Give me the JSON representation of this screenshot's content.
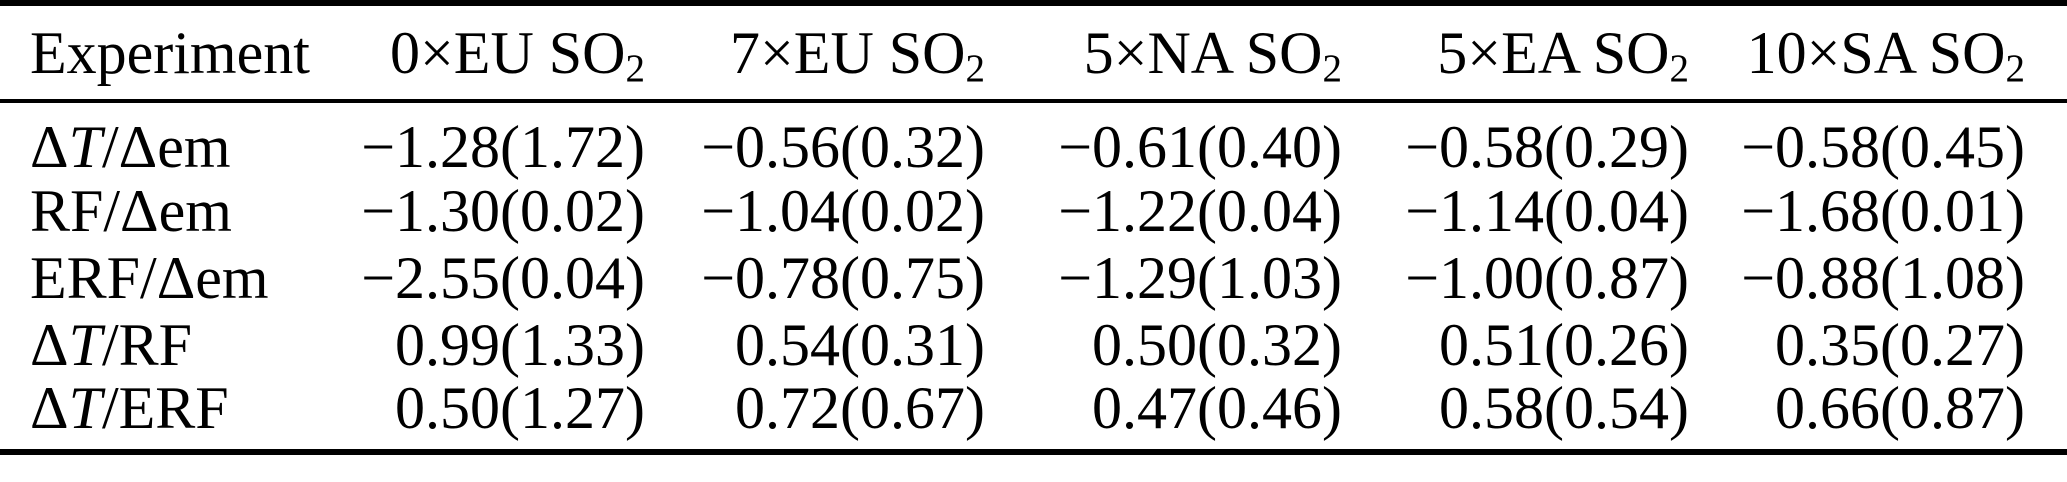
{
  "colors": {
    "text": "#000000",
    "background": "#ffffff",
    "rules": "#000000"
  },
  "table": {
    "columns": [
      {
        "label": "Experiment",
        "sub": ""
      },
      {
        "label": "0×EU SO",
        "sub": "2"
      },
      {
        "label": "7×EU SO",
        "sub": "2"
      },
      {
        "label": "5×NA SO",
        "sub": "2"
      },
      {
        "label": "5×EA SO",
        "sub": "2"
      },
      {
        "label": "10×SA SO",
        "sub": "2"
      }
    ],
    "rows": [
      {
        "label_pre": "Δ",
        "label_italic": "T",
        "label_post": "/Δem",
        "values": [
          "−1.28(1.72)",
          "−0.56(0.32)",
          "−0.61(0.40)",
          "−0.58(0.29)",
          "−0.58(0.45)"
        ]
      },
      {
        "label_pre": "RF/Δem",
        "label_italic": "",
        "label_post": "",
        "values": [
          "−1.30(0.02)",
          "−1.04(0.02)",
          "−1.22(0.04)",
          "−1.14(0.04)",
          "−1.68(0.01)"
        ]
      },
      {
        "label_pre": "ERF/Δem",
        "label_italic": "",
        "label_post": "",
        "values": [
          "−2.55(0.04)",
          "−0.78(0.75)",
          "−1.29(1.03)",
          "−1.00(0.87)",
          "−0.88(1.08)"
        ]
      },
      {
        "label_pre": "Δ",
        "label_italic": "T",
        "label_post": "/RF",
        "values": [
          "0.99(1.33)",
          "0.54(0.31)",
          "0.50(0.32)",
          "0.51(0.26)",
          "0.35(0.27)"
        ]
      },
      {
        "label_pre": "Δ",
        "label_italic": "T",
        "label_post": "/ERF",
        "values": [
          "0.50(1.27)",
          "0.72(0.67)",
          "0.47(0.46)",
          "0.58(0.54)",
          "0.66(0.87)"
        ]
      }
    ]
  }
}
